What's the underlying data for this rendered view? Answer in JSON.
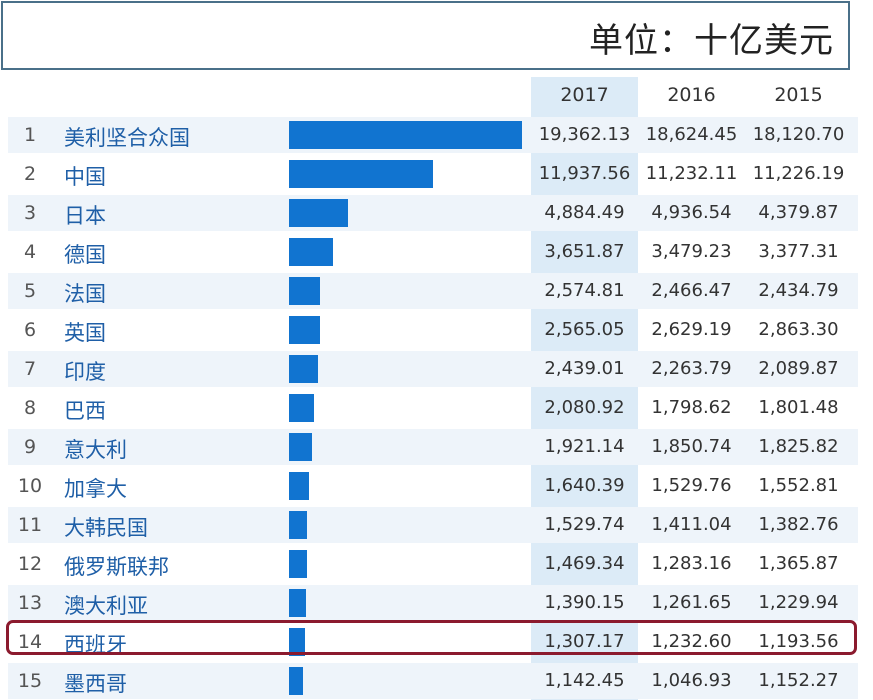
{
  "unit_label": "单位：十亿美元",
  "columns": [
    "2017",
    "2016",
    "2015"
  ],
  "highlight_rank": "14",
  "chart_data": {
    "type": "table",
    "bar_series": "2017",
    "bar_max": 19362.13,
    "rows": [
      {
        "rank": "1",
        "country": "美利坚合众国",
        "v2017": "19,362.13",
        "v2016": "18,624.45",
        "v2015": "18,120.70",
        "bar": 19362.13
      },
      {
        "rank": "2",
        "country": "中国",
        "v2017": "11,937.56",
        "v2016": "11,232.11",
        "v2015": "11,226.19",
        "bar": 11937.56
      },
      {
        "rank": "3",
        "country": "日本",
        "v2017": "4,884.49",
        "v2016": "4,936.54",
        "v2015": "4,379.87",
        "bar": 4884.49
      },
      {
        "rank": "4",
        "country": "德国",
        "v2017": "3,651.87",
        "v2016": "3,479.23",
        "v2015": "3,377.31",
        "bar": 3651.87
      },
      {
        "rank": "5",
        "country": "法国",
        "v2017": "2,574.81",
        "v2016": "2,466.47",
        "v2015": "2,434.79",
        "bar": 2574.81
      },
      {
        "rank": "6",
        "country": "英国",
        "v2017": "2,565.05",
        "v2016": "2,629.19",
        "v2015": "2,863.30",
        "bar": 2565.05
      },
      {
        "rank": "7",
        "country": "印度",
        "v2017": "2,439.01",
        "v2016": "2,263.79",
        "v2015": "2,089.87",
        "bar": 2439.01
      },
      {
        "rank": "8",
        "country": "巴西",
        "v2017": "2,080.92",
        "v2016": "1,798.62",
        "v2015": "1,801.48",
        "bar": 2080.92
      },
      {
        "rank": "9",
        "country": "意大利",
        "v2017": "1,921.14",
        "v2016": "1,850.74",
        "v2015": "1,825.82",
        "bar": 1921.14
      },
      {
        "rank": "10",
        "country": "加拿大",
        "v2017": "1,640.39",
        "v2016": "1,529.76",
        "v2015": "1,552.81",
        "bar": 1640.39
      },
      {
        "rank": "11",
        "country": "大韩民国",
        "v2017": "1,529.74",
        "v2016": "1,411.04",
        "v2015": "1,382.76",
        "bar": 1529.74
      },
      {
        "rank": "12",
        "country": "俄罗斯联邦",
        "v2017": "1,469.34",
        "v2016": "1,283.16",
        "v2015": "1,365.87",
        "bar": 1469.34
      },
      {
        "rank": "13",
        "country": "澳大利亚",
        "v2017": "1,390.15",
        "v2016": "1,261.65",
        "v2015": "1,229.94",
        "bar": 1390.15
      },
      {
        "rank": "14",
        "country": "西班牙",
        "v2017": "1,307.17",
        "v2016": "1,232.60",
        "v2015": "1,193.56",
        "bar": 1307.17
      },
      {
        "rank": "15",
        "country": "墨西哥",
        "v2017": "1,142.45",
        "v2016": "1,046.93",
        "v2015": "1,152.27",
        "bar": 1142.45
      }
    ]
  }
}
